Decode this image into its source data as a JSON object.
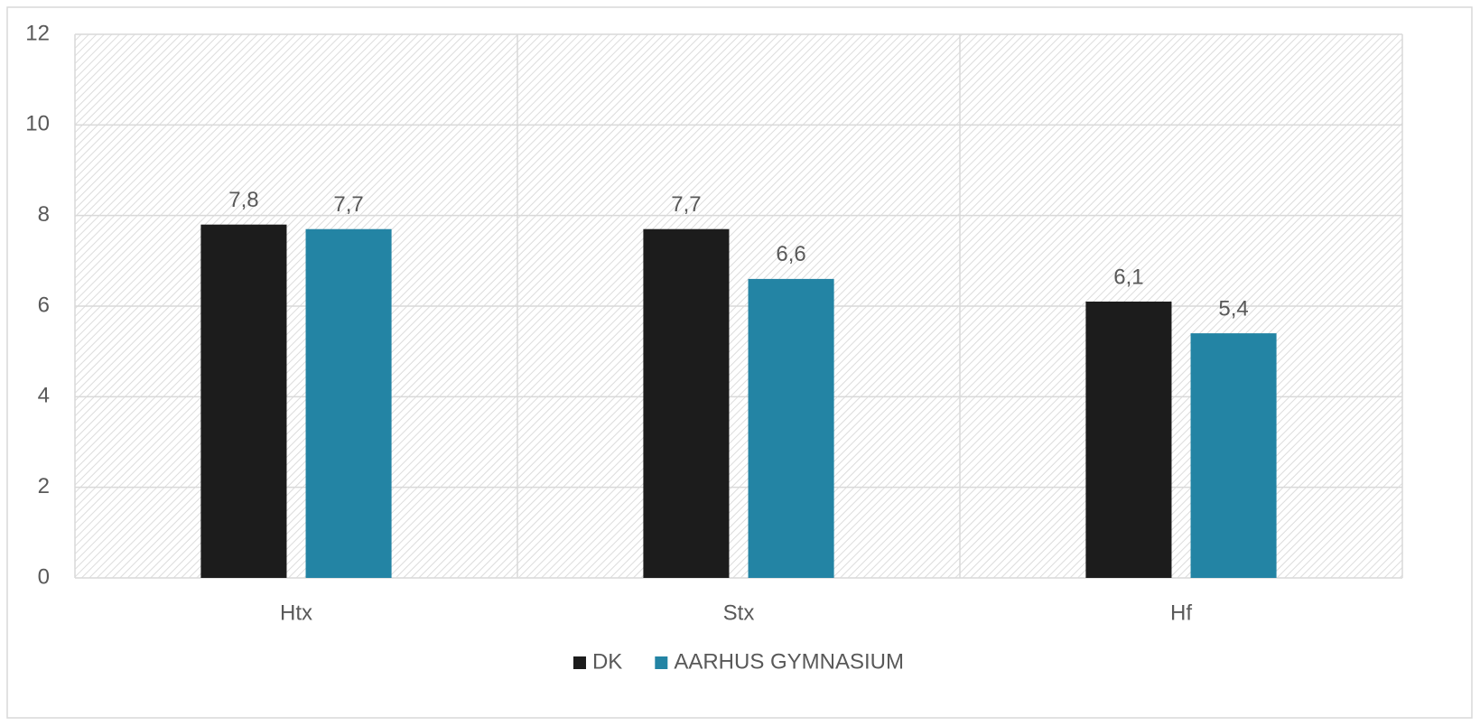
{
  "chart_data": {
    "type": "bar",
    "categories": [
      "Htx",
      "Stx",
      "Hf"
    ],
    "series": [
      {
        "name": "DK",
        "color": "#1c1c1c",
        "values": [
          7.8,
          7.7,
          6.1
        ],
        "value_labels": [
          "7,8",
          "7,7",
          "6,1"
        ]
      },
      {
        "name": "AARHUS GYMNASIUM",
        "color": "#2384a4",
        "values": [
          7.7,
          6.6,
          5.4
        ],
        "value_labels": [
          "7,7",
          "6,6",
          "5,4"
        ]
      }
    ],
    "ylim": [
      0,
      12
    ],
    "yticks": [
      0,
      2,
      4,
      6,
      8,
      10,
      12
    ],
    "grid": true,
    "legend": "bottom"
  }
}
